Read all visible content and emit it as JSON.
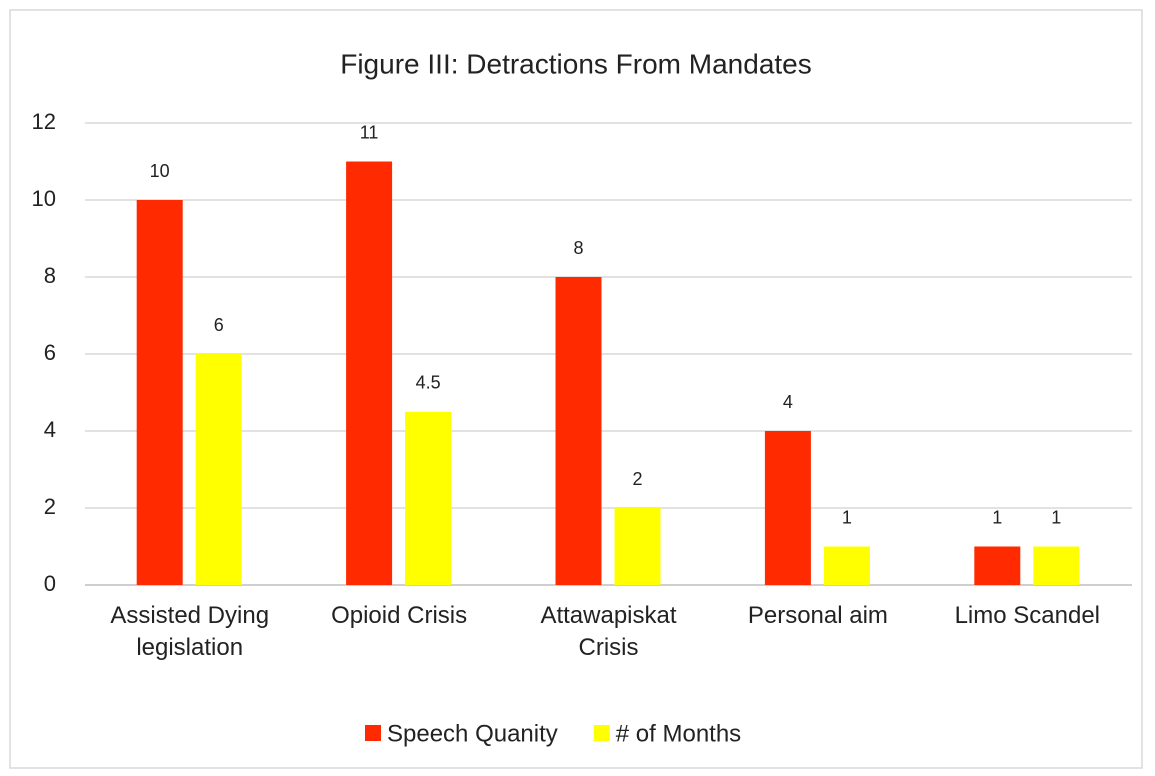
{
  "chart_data": {
    "type": "bar",
    "title": "Figure III: Detractions From Mandates",
    "categories": [
      "Assisted Dying legislation",
      "Opioid Crisis",
      "Attawapiskat Crisis",
      "Personal aim",
      "Limo Scandel"
    ],
    "series": [
      {
        "name": "Speech Quanity",
        "color": "#ff2a00",
        "values": [
          10,
          11,
          8,
          4,
          1
        ]
      },
      {
        "name": "# of Months",
        "color": "#ffff00",
        "values": [
          6,
          4.5,
          2,
          1,
          1
        ]
      }
    ],
    "ylim": [
      0,
      12
    ],
    "yticks": [
      0,
      2,
      4,
      6,
      8,
      10,
      12
    ],
    "grid": true,
    "legend": "bottom"
  }
}
